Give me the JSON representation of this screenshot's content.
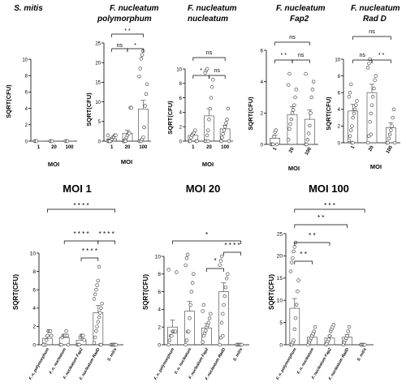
{
  "figure": {
    "top_ylabel": "SQRT(CFU)",
    "bottom_ylabel": "SQRT(CFU)",
    "top_xlabel": "MOI"
  },
  "chart_data": [
    {
      "type": "bar",
      "title": "S. mitis",
      "xlabel": "MOI",
      "ylabel": "SQRT(CFU)",
      "categories": [
        "1",
        "20",
        "100"
      ],
      "ylim": [
        0,
        10
      ],
      "yticks": [
        0,
        2,
        4,
        6,
        8,
        10
      ],
      "values": [
        0,
        0,
        0
      ],
      "errors": [
        0,
        0,
        0
      ],
      "points": [
        [
          0,
          0,
          0
        ],
        [
          0,
          0,
          0
        ],
        [
          0,
          0,
          0
        ]
      ],
      "brackets": []
    },
    {
      "type": "bar",
      "title": "F. nucleatum polymorphum",
      "xlabel": "MOI",
      "ylabel": "SQRT(CFU)",
      "categories": [
        "1",
        "20",
        "100"
      ],
      "ylim": [
        0,
        25
      ],
      "yticks": [
        0,
        5,
        10,
        15,
        20,
        25
      ],
      "values": [
        0.6,
        2.0,
        8.2
      ],
      "errors": [
        0.3,
        0.8,
        2.2
      ],
      "points": [
        [
          0,
          0,
          0,
          0,
          0.5,
          1.0,
          1.0,
          1.5,
          1.5,
          1.5,
          0,
          0
        ],
        [
          0,
          0,
          0.5,
          1.0,
          1.5,
          2.0,
          2.0,
          8.5,
          8.5,
          0,
          0,
          0
        ],
        [
          0,
          0,
          0,
          0.5,
          1.0,
          3.5,
          9.0,
          12.0,
          14.5,
          16.5,
          18.5,
          21.0,
          22.0,
          23.0
        ]
      ],
      "brackets": [
        {
          "from": 0,
          "to": 2,
          "label": "* *"
        },
        {
          "from": 0,
          "to": 1,
          "label": "ns"
        },
        {
          "from": 1,
          "to": 2,
          "label": "*"
        }
      ]
    },
    {
      "type": "bar",
      "title": "F. nucleatum nucleatum",
      "xlabel": "MOI",
      "ylabel": "SQRT(CFU)",
      "categories": [
        "1",
        "20",
        "100"
      ],
      "ylim": [
        0,
        10
      ],
      "yticks": [
        0,
        2,
        4,
        6,
        8,
        10
      ],
      "values": [
        0.8,
        3.5,
        1.7
      ],
      "errors": [
        0.3,
        1.0,
        0.5
      ],
      "points": [
        [
          0,
          0,
          0.5,
          0.8,
          1.0,
          1.2,
          1.5,
          0,
          0
        ],
        [
          0,
          0,
          0.8,
          1.5,
          3.0,
          4.5,
          6.0,
          7.5,
          8.5,
          9.5,
          9.8,
          10.0,
          0
        ],
        [
          0,
          0.5,
          1.0,
          1.5,
          2.0,
          2.5,
          3.0,
          4.5,
          0,
          0
        ]
      ],
      "brackets": [
        {
          "from": 0,
          "to": 2,
          "label": "ns"
        },
        {
          "from": 0,
          "to": 1,
          "label": "*"
        },
        {
          "from": 1,
          "to": 2,
          "label": "ns"
        }
      ]
    },
    {
      "type": "bar",
      "title": "F. nucleatum Fap2",
      "xlabel": "MOI",
      "ylabel": "SQRT(CFU)",
      "categories": [
        "1",
        "20",
        "100"
      ],
      "ylim": [
        0,
        6
      ],
      "yticks": [
        0,
        2,
        4,
        6
      ],
      "values": [
        0.4,
        1.9,
        1.6
      ],
      "errors": [
        0.2,
        0.5,
        0.6
      ],
      "points": [
        [
          0,
          0,
          0,
          0.5,
          0.8,
          0.9,
          0
        ],
        [
          0.3,
          1.0,
          1.3,
          1.6,
          2.0,
          2.2,
          2.5,
          3.0,
          3.5,
          3.8,
          4.5
        ],
        [
          0,
          0,
          0.3,
          0.7,
          1.2,
          2.0,
          3.0,
          3.5,
          4.0,
          4.5
        ]
      ],
      "brackets": [
        {
          "from": 0,
          "to": 2,
          "label": "ns"
        },
        {
          "from": 0,
          "to": 1,
          "label": "* *"
        },
        {
          "from": 1,
          "to": 2,
          "label": "ns"
        }
      ]
    },
    {
      "type": "bar",
      "title": "F. nucleatum Rad D",
      "xlabel": "MOI",
      "ylabel": "SQRT(CFU)",
      "categories": [
        "1",
        "20",
        "100"
      ],
      "ylim": [
        0,
        10
      ],
      "yticks": [
        0,
        2,
        4,
        6,
        8,
        10
      ],
      "values": [
        3.8,
        6.0,
        1.8
      ],
      "errors": [
        0.8,
        1.0,
        0.6
      ],
      "points": [
        [
          0.3,
          0.8,
          1.5,
          2.0,
          3.0,
          3.5,
          4.0,
          4.5,
          5.0,
          5.5,
          6.0,
          7.0,
          0,
          0
        ],
        [
          0,
          0.8,
          2.5,
          3.5,
          4.5,
          5.5,
          6.5,
          7.5,
          8.0,
          9.0,
          9.5,
          10.0,
          1.0
        ],
        [
          0,
          0,
          0.5,
          1.0,
          1.5,
          2.0,
          3.0,
          4.0,
          0
        ]
      ],
      "brackets": [
        {
          "from": 0,
          "to": 2,
          "label": "ns"
        },
        {
          "from": 0,
          "to": 1,
          "label": "ns"
        },
        {
          "from": 1,
          "to": 2,
          "label": "* *"
        }
      ]
    },
    {
      "type": "bar",
      "title": "MOI 1",
      "xlabel": "",
      "ylabel": "SQRT(CFU)",
      "categories": [
        "F. n. polymorphum",
        "F. n. nucleatum",
        "F. nucleatum Fap2",
        "F. nucleatum RadD",
        "S. mitis"
      ],
      "ylim": [
        0,
        10
      ],
      "yticks": [
        0,
        2,
        4,
        6,
        8,
        10
      ],
      "values": [
        0.7,
        0.8,
        0.5,
        3.5,
        0
      ],
      "errors": [
        0.25,
        0.3,
        0.2,
        0.8,
        0
      ],
      "points": [
        [
          0,
          0,
          0,
          0.5,
          1.0,
          1.5,
          1.5,
          1.5,
          1.0,
          0
        ],
        [
          0,
          0,
          0.8,
          1.0,
          1.0,
          1.0,
          1.5,
          1.0,
          0
        ],
        [
          0,
          0,
          0,
          0.8,
          1.0,
          1.0,
          1.0,
          0.5
        ],
        [
          0.2,
          0.8,
          1.5,
          2.0,
          2.5,
          3.0,
          3.5,
          4.0,
          4.5,
          5.0,
          5.5,
          6.0,
          6.5,
          7.0,
          8.5,
          0,
          0
        ],
        [
          0,
          0,
          0,
          0,
          0,
          0
        ]
      ],
      "brackets": [
        {
          "from": 0,
          "to": 4,
          "label": "* * * *"
        },
        {
          "from": 1,
          "to": 3,
          "label": "* * * *"
        },
        {
          "from": 3,
          "to": 4,
          "label": "* * * *"
        },
        {
          "from": 2,
          "to": 3,
          "label": "* * * *"
        }
      ]
    },
    {
      "type": "bar",
      "title": "MOI 20",
      "xlabel": "",
      "ylabel": "SQRT(CFU)",
      "categories": [
        "F. n. polymorphum",
        "F. n. nucleatum",
        "F. nucleatum Fap2",
        "F. nucleatum RadD",
        "S. mitis"
      ],
      "ylim": [
        0,
        10
      ],
      "yticks": [
        0,
        2,
        4,
        6,
        8,
        10
      ],
      "values": [
        2.0,
        3.8,
        1.9,
        6.0,
        0
      ],
      "errors": [
        0.8,
        1.1,
        0.5,
        1.0,
        0
      ],
      "points": [
        [
          0,
          0.5,
          1.0,
          1.0,
          1.5,
          1.5,
          1.5,
          1.5,
          8.2,
          8.5
        ],
        [
          0,
          0.5,
          1.5,
          1.5,
          3.0,
          4.5,
          6.0,
          7.0,
          8.0,
          9.0,
          9.8,
          10.2
        ],
        [
          0.3,
          1.0,
          1.3,
          1.6,
          2.0,
          2.2,
          2.5,
          3.0,
          3.5,
          3.8,
          4.5
        ],
        [
          0,
          0.8,
          2.5,
          3.5,
          4.5,
          5.5,
          6.5,
          7.5,
          8.0,
          9.0,
          9.5,
          10.0,
          1.0
        ],
        [
          0,
          0,
          0,
          0,
          0,
          0
        ]
      ],
      "brackets": [
        {
          "from": 0,
          "to": 4,
          "label": "*"
        },
        {
          "from": 2,
          "to": 3,
          "label": "*"
        },
        {
          "from": 3,
          "to": 4,
          "label": "* * * *"
        }
      ]
    },
    {
      "type": "bar",
      "title": "MOI 100",
      "xlabel": "",
      "ylabel": "SQRT(CFU)",
      "categories": [
        "F. n. polymorphum",
        "F. n. nucleatum",
        "F. nucleatum Fap2",
        "F. nucleatum RadD",
        "S. mitis"
      ],
      "ylim": [
        0,
        25
      ],
      "yticks": [
        0,
        5,
        10,
        15,
        20,
        25
      ],
      "values": [
        8.2,
        1.7,
        1.5,
        1.7,
        0
      ],
      "errors": [
        2.2,
        0.5,
        0.5,
        0.6,
        0
      ],
      "points": [
        [
          0,
          0,
          0.5,
          1.0,
          3.5,
          6.0,
          9.0,
          12.0,
          14.5,
          16.5,
          18.5,
          19.5,
          21.0,
          22.0,
          23.0
        ],
        [
          0,
          0.5,
          1.0,
          1.5,
          2.0,
          2.5,
          3.0,
          4.0
        ],
        [
          0,
          0.3,
          0.8,
          1.2,
          2.0,
          3.0,
          3.5,
          4.0,
          4.5
        ],
        [
          0,
          0.5,
          1.0,
          1.5,
          2.0,
          3.0,
          4.0
        ],
        [
          0,
          0,
          0,
          0,
          0
        ]
      ],
      "brackets": [
        {
          "from": 0,
          "to": 4,
          "label": "* * *"
        },
        {
          "from": 0,
          "to": 3,
          "label": "* *"
        },
        {
          "from": 0,
          "to": 2,
          "label": "* *"
        },
        {
          "from": 0,
          "to": 1,
          "label": "* *"
        }
      ]
    }
  ]
}
